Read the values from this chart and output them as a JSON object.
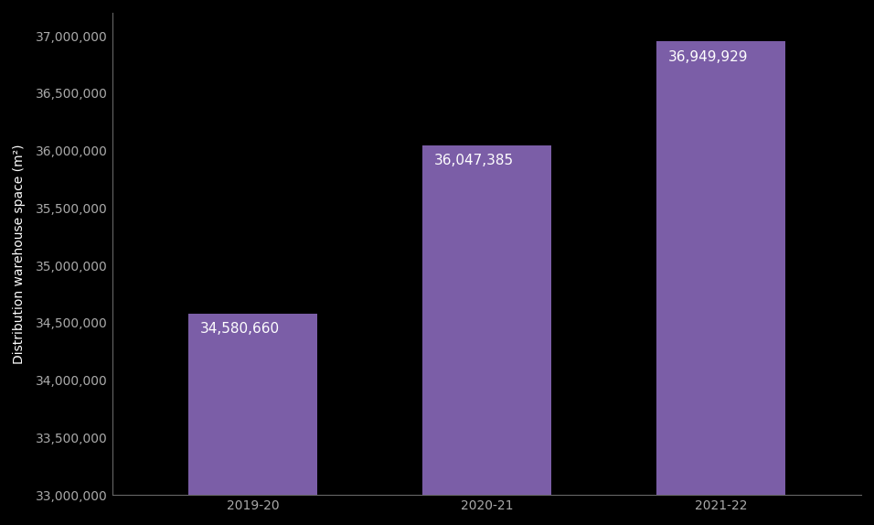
{
  "categories": [
    "2019-20",
    "2020-21",
    "2021-22"
  ],
  "values": [
    34580660,
    36047385,
    36949929
  ],
  "labels": [
    "34,580,660",
    "36,047,385",
    "36,949,929"
  ],
  "bar_color": "#7b5ea7",
  "background_color": "#000000",
  "text_color": "#ffffff",
  "axis_label_color": "#ffffff",
  "tick_label_color": "#aaaaaa",
  "ylabel": "Distribution warehouse space (m²)",
  "ylim_min": 33000000,
  "ylim_max": 37200000,
  "ytick_step": 500000,
  "bar_label_fontsize": 11,
  "ylabel_fontsize": 10,
  "tick_fontsize": 10,
  "bar_width": 0.55,
  "spine_color": "#666666"
}
